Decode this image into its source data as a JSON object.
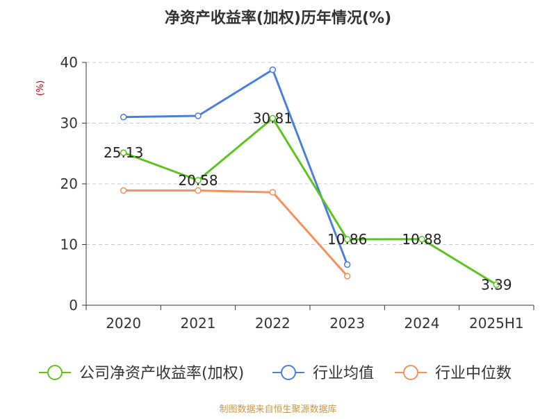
{
  "chart_data": {
    "type": "line",
    "title": "净资产收益率(加权)历年情况(%)",
    "ylabel": "(%)",
    "categories": [
      "2020",
      "2021",
      "2022",
      "2023",
      "2024",
      "2025H1"
    ],
    "ylim": [
      0,
      40
    ],
    "yticks": [
      0,
      10,
      20,
      30,
      40
    ],
    "grid": true,
    "legend_position": "bottom",
    "series": [
      {
        "name": "公司净资产收益率(加权)",
        "color": "#5cc31f",
        "values": [
          25.13,
          20.58,
          30.81,
          10.86,
          10.88,
          3.39
        ],
        "labels": [
          "25.13",
          "20.58",
          "30.81",
          "10.86",
          "10.88",
          "3.39"
        ]
      },
      {
        "name": "行业均值",
        "color": "#4a7fdb",
        "values": [
          31.0,
          31.2,
          38.8,
          6.7,
          null,
          null
        ]
      },
      {
        "name": "行业中位数",
        "color": "#f5905c",
        "values": [
          18.9,
          18.9,
          18.6,
          4.8,
          null,
          null
        ]
      }
    ]
  },
  "footer": {
    "source": "制图数据来自恒生聚源数据库"
  },
  "colors": {
    "title": "#333333",
    "ylabel": "#cc0000",
    "axis": "#333333",
    "grid": "#c8c8c8",
    "footer": "#c8963c"
  }
}
